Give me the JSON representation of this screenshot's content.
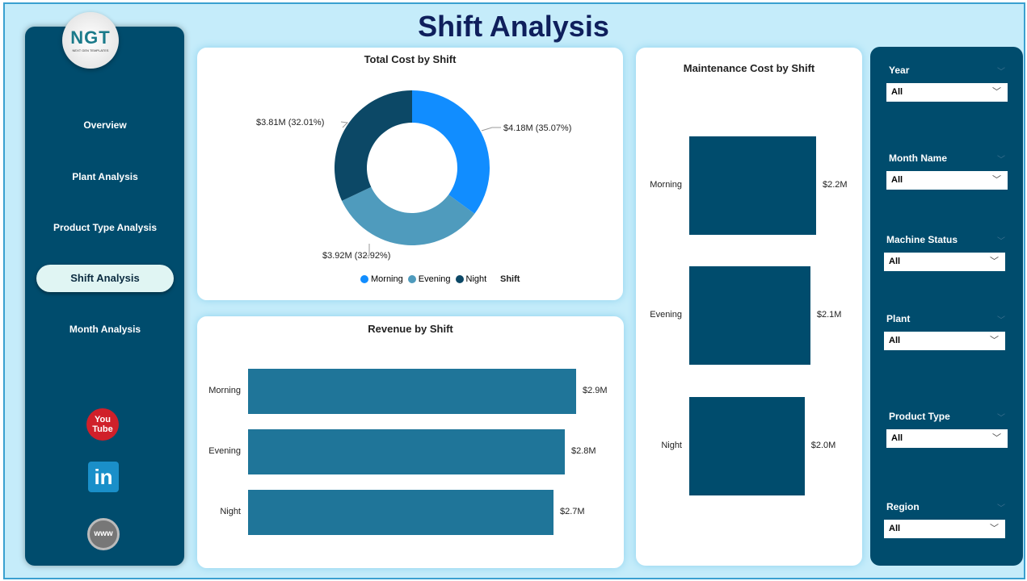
{
  "header": {
    "title": "Shift Analysis"
  },
  "logo": {
    "text": "NGT",
    "subtitle": "NEXT GEN TEMPLATES"
  },
  "sidebar": {
    "items": [
      {
        "label": "Overview"
      },
      {
        "label": "Plant Analysis"
      },
      {
        "label": "Product Type Analysis"
      },
      {
        "label": "Shift Analysis",
        "active": true
      },
      {
        "label": "Month Analysis"
      }
    ],
    "social": [
      {
        "icon": "youtube-icon",
        "label": "You Tube"
      },
      {
        "icon": "linkedin-icon",
        "label": "in"
      },
      {
        "icon": "website-icon",
        "label": "www"
      }
    ]
  },
  "filters": [
    {
      "label": "Year",
      "value": "All"
    },
    {
      "label": "Month Name",
      "value": "All"
    },
    {
      "label": "Machine Status",
      "value": "All"
    },
    {
      "label": "Plant",
      "value": "All"
    },
    {
      "label": "Product Type",
      "value": "All"
    },
    {
      "label": "Region",
      "value": "All"
    }
  ],
  "chart_data": [
    {
      "type": "pie",
      "donut": true,
      "title": "Total Cost by Shift",
      "legend_title": "Shift",
      "legend_position": "bottom",
      "categories": [
        "Morning",
        "Evening",
        "Night"
      ],
      "values": [
        4.18,
        3.92,
        3.81
      ],
      "percent": [
        35.07,
        32.92,
        32.01
      ],
      "labels": [
        "$4.18M (35.07%)",
        "$3.92M (32.92%)",
        "$3.81M (32.01%)"
      ],
      "colors": [
        "#118dff",
        "#4f9bbd",
        "#0c4866"
      ]
    },
    {
      "type": "bar",
      "orientation": "horizontal",
      "title": "Revenue by Shift",
      "categories": [
        "Morning",
        "Evening",
        "Night"
      ],
      "values": [
        2.9,
        2.8,
        2.7
      ],
      "labels": [
        "$2.9M",
        "$2.8M",
        "$2.7M"
      ],
      "color": "#1f7599"
    },
    {
      "type": "bar",
      "orientation": "horizontal",
      "title": "Maintenance Cost by Shift",
      "categories": [
        "Morning",
        "Evening",
        "Night"
      ],
      "values": [
        2.2,
        2.1,
        2.0
      ],
      "labels": [
        "$2.2M",
        "$2.1M",
        "$2.0M"
      ],
      "color": "#004c6d"
    }
  ]
}
